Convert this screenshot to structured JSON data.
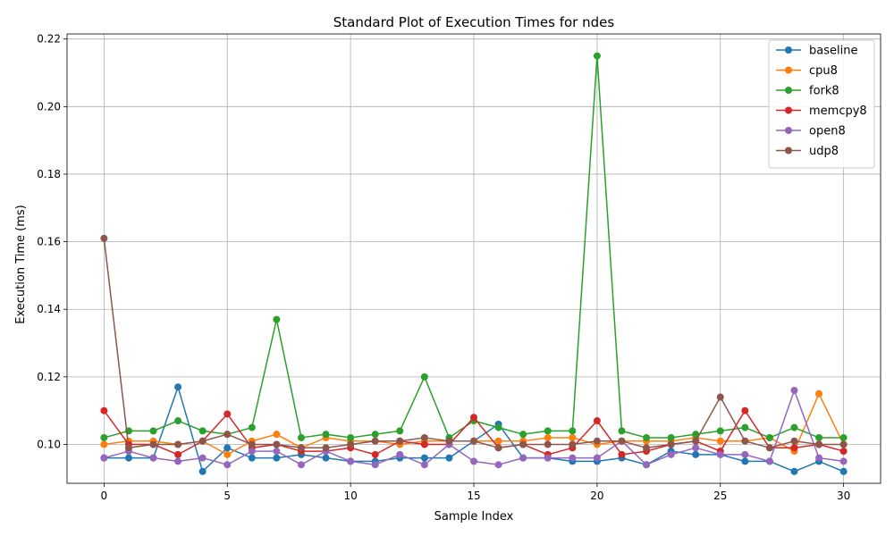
{
  "chart_data": {
    "type": "line",
    "title": "Standard Plot of Execution Times for ndes",
    "xlabel": "Sample Index",
    "ylabel": "Execution Time (ms)",
    "xlim": [
      -1.5,
      31.5
    ],
    "ylim": [
      0.0885,
      0.2215
    ],
    "xticks": [
      0,
      5,
      10,
      15,
      20,
      25,
      30
    ],
    "yticks": [
      0.1,
      0.12,
      0.14,
      0.16,
      0.18,
      0.2,
      0.22
    ],
    "grid": true,
    "legend_position": "top-right",
    "x": [
      0,
      1,
      2,
      3,
      4,
      5,
      6,
      7,
      8,
      9,
      10,
      11,
      12,
      13,
      14,
      15,
      16,
      17,
      18,
      19,
      20,
      21,
      22,
      23,
      24,
      25,
      26,
      27,
      28,
      29,
      30
    ],
    "series": [
      {
        "name": "baseline",
        "color": "#1f77b4",
        "values": [
          0.096,
          0.096,
          0.096,
          0.117,
          0.092,
          0.099,
          0.096,
          0.096,
          0.097,
          0.096,
          0.095,
          0.095,
          0.096,
          0.096,
          0.096,
          0.101,
          0.106,
          0.096,
          0.096,
          0.095,
          0.095,
          0.096,
          0.094,
          0.098,
          0.097,
          0.097,
          0.095,
          0.095,
          0.092,
          0.095,
          0.092
        ]
      },
      {
        "name": "cpu8",
        "color": "#ff7f0e",
        "values": [
          0.1,
          0.101,
          0.101,
          0.1,
          0.101,
          0.097,
          0.101,
          0.103,
          0.099,
          0.102,
          0.101,
          0.101,
          0.1,
          0.101,
          0.101,
          0.101,
          0.101,
          0.101,
          0.102,
          0.102,
          0.1,
          0.101,
          0.101,
          0.101,
          0.102,
          0.101,
          0.101,
          0.102,
          0.098,
          0.115,
          0.1
        ]
      },
      {
        "name": "fork8",
        "color": "#2ca02c",
        "values": [
          0.102,
          0.104,
          0.104,
          0.107,
          0.104,
          0.103,
          0.105,
          0.137,
          0.102,
          0.103,
          0.102,
          0.103,
          0.104,
          0.12,
          0.102,
          0.107,
          0.105,
          0.103,
          0.104,
          0.104,
          0.215,
          0.104,
          0.102,
          0.102,
          0.103,
          0.104,
          0.105,
          0.102,
          0.105,
          0.102,
          0.102
        ]
      },
      {
        "name": "memcpy8",
        "color": "#d62728",
        "values": [
          0.11,
          0.1,
          0.1,
          0.097,
          0.101,
          0.109,
          0.099,
          0.1,
          0.098,
          0.098,
          0.099,
          0.097,
          0.101,
          0.1,
          0.1,
          0.108,
          0.099,
          0.1,
          0.097,
          0.099,
          0.107,
          0.097,
          0.098,
          0.1,
          0.101,
          0.098,
          0.11,
          0.099,
          0.099,
          0.1,
          0.098
        ]
      },
      {
        "name": "open8",
        "color": "#9467bd",
        "values": [
          0.096,
          0.098,
          0.096,
          0.095,
          0.096,
          0.094,
          0.098,
          0.098,
          0.094,
          0.098,
          0.095,
          0.094,
          0.097,
          0.094,
          0.1,
          0.095,
          0.094,
          0.096,
          0.096,
          0.096,
          0.096,
          0.101,
          0.094,
          0.097,
          0.099,
          0.097,
          0.097,
          0.095,
          0.116,
          0.096,
          0.095
        ]
      },
      {
        "name": "udp8",
        "color": "#8c564b",
        "values": [
          0.161,
          0.099,
          0.1,
          0.1,
          0.101,
          0.103,
          0.1,
          0.1,
          0.099,
          0.099,
          0.1,
          0.101,
          0.101,
          0.102,
          0.101,
          0.101,
          0.099,
          0.1,
          0.1,
          0.1,
          0.101,
          0.101,
          0.099,
          0.1,
          0.101,
          0.114,
          0.101,
          0.099,
          0.101,
          0.1,
          0.1
        ]
      }
    ]
  }
}
